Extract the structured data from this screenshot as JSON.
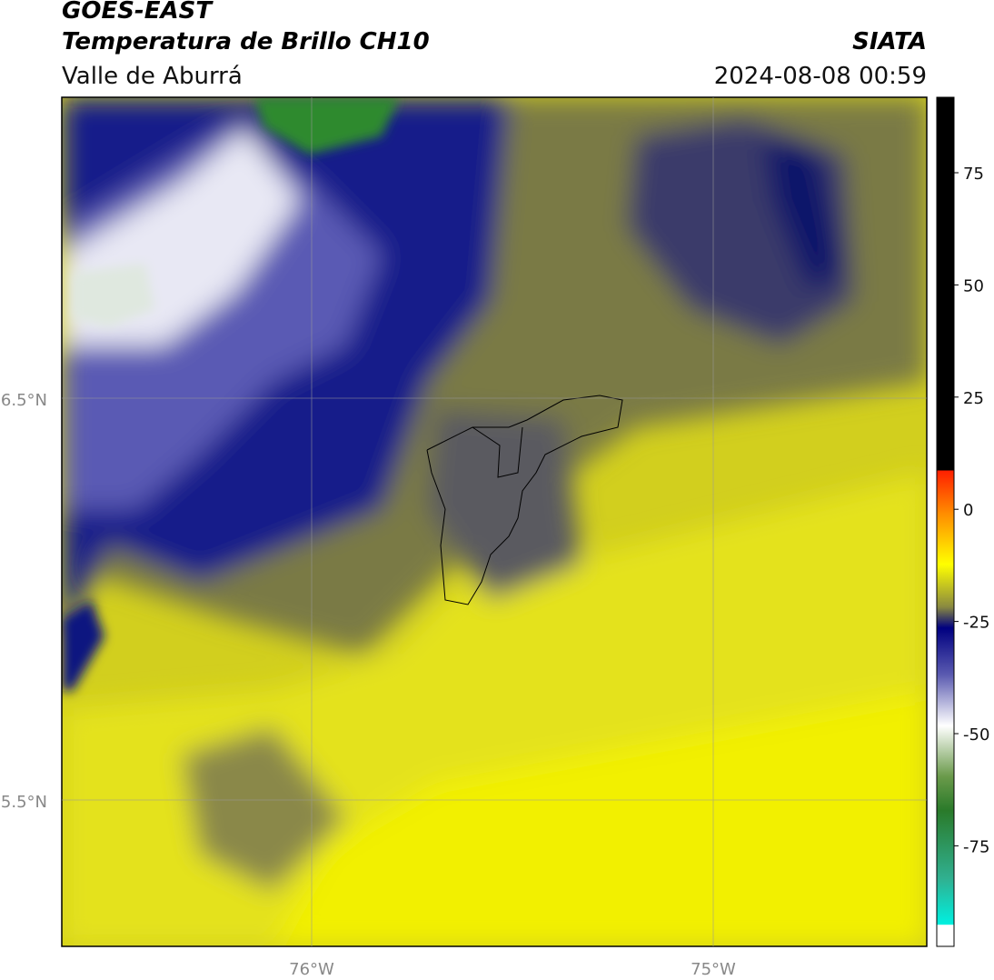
{
  "header": {
    "title": "GOES-EAST",
    "subtitle": "Temperatura de Brillo CH10",
    "region": "Valle de Aburrá",
    "source": "SIATA",
    "datetime": "2024-08-08 00:59"
  },
  "map": {
    "lat_ticks": [
      "6.5°N",
      "5.5°N"
    ],
    "lon_ticks": [
      "76°W",
      "75°W"
    ]
  },
  "colorbar": {
    "ticks": [
      75,
      50,
      25,
      0,
      -25,
      -50,
      -75
    ]
  }
}
